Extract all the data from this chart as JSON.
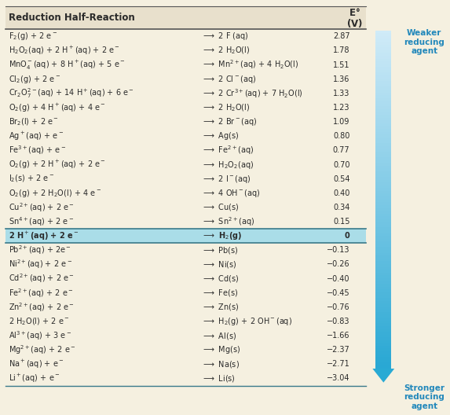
{
  "title_col1": "Reduction Half-Reaction",
  "header_bg": "#e8e0cc",
  "highlight_bg": "#aadde8",
  "fig_bg": "#f5f0e0",
  "rows": [
    {
      "left": "F$_2$(g) + 2 e$^-$",
      "right": "$\\longrightarrow$ 2 F (aq)",
      "E": "2.87",
      "highlight": false
    },
    {
      "left": "H$_2$O$_2$(aq) + 2 H$^+$(aq) + 2 e$^-$",
      "right": "$\\longrightarrow$ 2 H$_2$O(l)",
      "E": "1.78",
      "highlight": false
    },
    {
      "left": "MnO$_4^-$(aq) + 8 H$^+$(aq) + 5 e$^-$",
      "right": "$\\longrightarrow$ Mn$^{2+}$(aq) + 4 H$_2$O(l)",
      "E": "1.51",
      "highlight": false
    },
    {
      "left": "Cl$_2$(g) + 2 e$^-$",
      "right": "$\\longrightarrow$ 2 Cl$^-$(aq)",
      "E": "1.36",
      "highlight": false
    },
    {
      "left": "Cr$_2$O$_7^{2-}$(aq) + 14 H$^+$(aq) + 6 e$^-$",
      "right": "$\\longrightarrow$ 2 Cr$^{3+}$(aq) + 7 H$_2$O(l)",
      "E": "1.33",
      "highlight": false
    },
    {
      "left": "O$_2$(g) + 4 H$^+$(aq) + 4 e$^-$",
      "right": "$\\longrightarrow$ 2 H$_2$O(l)",
      "E": "1.23",
      "highlight": false
    },
    {
      "left": "Br$_2$(l) + 2 e$^-$",
      "right": "$\\longrightarrow$ 2 Br$^-$(aq)",
      "E": "1.09",
      "highlight": false
    },
    {
      "left": "Ag$^+$(aq) + e$^-$",
      "right": "$\\longrightarrow$ Ag(s)",
      "E": "0.80",
      "highlight": false
    },
    {
      "left": "Fe$^{3+}$(aq) + e$^-$",
      "right": "$\\longrightarrow$ Fe$^{2+}$(aq)",
      "E": "0.77",
      "highlight": false
    },
    {
      "left": "O$_2$(g) + 2 H$^+$(aq) + 2 e$^-$",
      "right": "$\\longrightarrow$ H$_2$O$_2$(aq)",
      "E": "0.70",
      "highlight": false
    },
    {
      "left": "I$_2$(s) + 2 e$^-$",
      "right": "$\\longrightarrow$ 2 I$^-$(aq)",
      "E": "0.54",
      "highlight": false
    },
    {
      "left": "O$_2$(g) + 2 H$_2$O(l) + 4 e$^-$",
      "right": "$\\longrightarrow$ 4 OH$^-$(aq)",
      "E": "0.40",
      "highlight": false
    },
    {
      "left": "Cu$^{2+}$(aq) + 2 e$^-$",
      "right": "$\\longrightarrow$ Cu(s)",
      "E": "0.34",
      "highlight": false
    },
    {
      "left": "Sn$^{4+}$(aq) + 2 e$^-$",
      "right": "$\\longrightarrow$ Sn$^{2+}$(aq)",
      "E": "0.15",
      "highlight": false
    },
    {
      "left": "2 H$^+$(aq) + 2 e$^-$",
      "right": "$\\longrightarrow$ H$_2$(g)",
      "E": "0",
      "highlight": true
    },
    {
      "left": "Pb$^{2+}$(aq) + 2e$^-$",
      "right": "$\\longrightarrow$ Pb(s)",
      "E": "-0.13",
      "highlight": false
    },
    {
      "left": "Ni$^{2+}$(aq) + 2 e$^-$",
      "right": "$\\longrightarrow$ Ni(s)",
      "E": "-0.26",
      "highlight": false
    },
    {
      "left": "Cd$^{2+}$(aq) + 2 e$^-$",
      "right": "$\\longrightarrow$ Cd(s)",
      "E": "-0.40",
      "highlight": false
    },
    {
      "left": "Fe$^{2+}$(aq) + 2 e$^-$",
      "right": "$\\longrightarrow$ Fe(s)",
      "E": "-0.45",
      "highlight": false
    },
    {
      "left": "Zn$^{2+}$(aq) + 2 e$^-$",
      "right": "$\\longrightarrow$ Zn(s)",
      "E": "-0.76",
      "highlight": false
    },
    {
      "left": "2 H$_2$O(l) + 2 e$^-$",
      "right": "$\\longrightarrow$ H$_2$(g) + 2 OH$^-$(aq)",
      "E": "-0.83",
      "highlight": false
    },
    {
      "left": "Al$^{3+}$(aq) + 3 e$^-$",
      "right": "$\\longrightarrow$ Al(s)",
      "E": "-1.66",
      "highlight": false
    },
    {
      "left": "Mg$^{2+}$(aq) + 2 e$^-$",
      "right": "$\\longrightarrow$ Mg(s)",
      "E": "-2.37",
      "highlight": false
    },
    {
      "left": "Na$^+$(aq) + e$^-$",
      "right": "$\\longrightarrow$ Na(s)",
      "E": "-2.71",
      "highlight": false
    },
    {
      "left": "Li$^+$(aq) + e$^-$",
      "right": "$\\longrightarrow$ Li(s)",
      "E": "-3.04",
      "highlight": false
    }
  ],
  "weaker_text": "Weaker\nreducing\nagent",
  "stronger_text": "Stronger\nreducing\nagent",
  "arrow_color_top": "#d0eef8",
  "arrow_color_bottom": "#29a8d4",
  "text_color": "#2a2a2a",
  "side_text_color": "#2288bb"
}
